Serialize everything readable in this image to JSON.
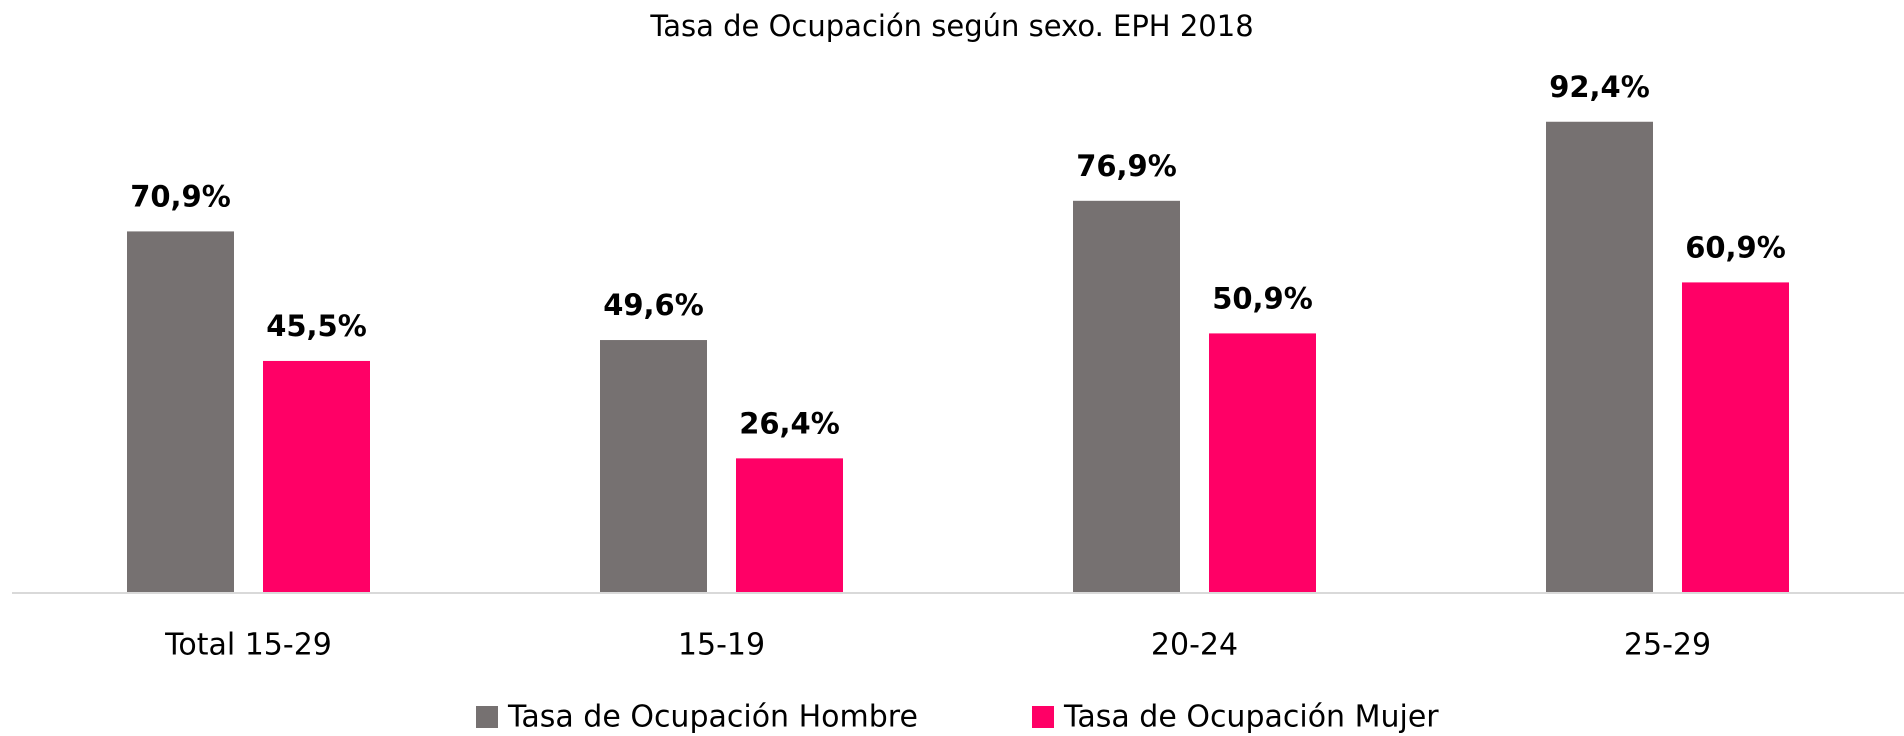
{
  "chart_data": {
    "type": "bar",
    "title": "Tasa de Ocupación según sexo. EPH 2018",
    "categories": [
      "Total 15-29",
      "15-19",
      "20-24",
      "25-29"
    ],
    "series": [
      {
        "name": "Tasa de Ocupación Hombre",
        "color": "#767171",
        "values": [
          70.9,
          49.6,
          76.9,
          92.4
        ],
        "value_labels": [
          "70,9%",
          "49,6%",
          "76,9%",
          "92,4%"
        ]
      },
      {
        "name": "Tasa de Ocupación Mujer",
        "color": "#ff0066",
        "values": [
          45.5,
          26.4,
          50.9,
          60.9
        ],
        "value_labels": [
          "45,5%",
          "26,4%",
          "50,9%",
          "60,9%"
        ]
      }
    ],
    "ylim": [
      0,
      100
    ],
    "legend": "bottom"
  }
}
